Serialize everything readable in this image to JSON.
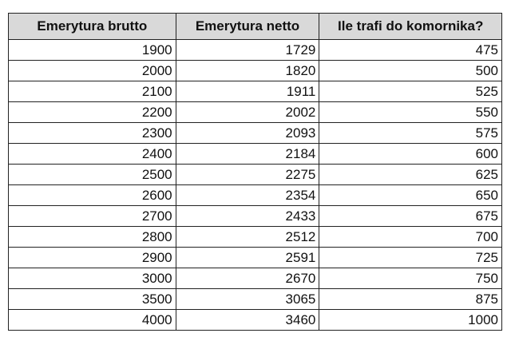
{
  "table": {
    "headers": [
      "Emerytura brutto",
      "Emerytura netto",
      "Ile trafi do komornika?"
    ],
    "rows": [
      [
        "1900",
        "1729",
        "475"
      ],
      [
        "2000",
        "1820",
        "500"
      ],
      [
        "2100",
        "1911",
        "525"
      ],
      [
        "2200",
        "2002",
        "550"
      ],
      [
        "2300",
        "2093",
        "575"
      ],
      [
        "2400",
        "2184",
        "600"
      ],
      [
        "2500",
        "2275",
        "625"
      ],
      [
        "2600",
        "2354",
        "650"
      ],
      [
        "2700",
        "2433",
        "675"
      ],
      [
        "2800",
        "2512",
        "700"
      ],
      [
        "2900",
        "2591",
        "725"
      ],
      [
        "3000",
        "2670",
        "750"
      ],
      [
        "3500",
        "3065",
        "875"
      ],
      [
        "4000",
        "3460",
        "1000"
      ]
    ]
  },
  "colors": {
    "header_bg": "#d9d9d9",
    "border": "#222222"
  }
}
